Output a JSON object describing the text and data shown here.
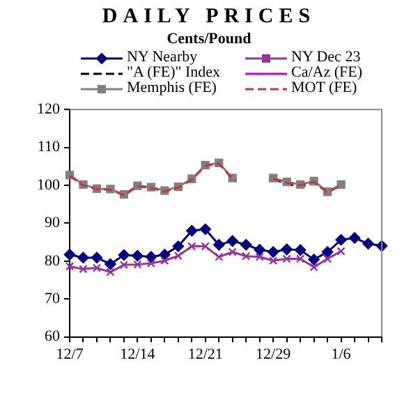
{
  "chart_data": {
    "type": "line",
    "title": "DAILY PRICES",
    "subtitle": "Cents/Pound",
    "categories": [
      "12/7",
      null,
      null,
      null,
      null,
      "12/14",
      null,
      null,
      null,
      null,
      "12/21",
      null,
      null,
      null,
      null,
      "12/29",
      null,
      null,
      null,
      null,
      "1/6",
      null,
      null,
      null
    ],
    "series": [
      {
        "name": "NY Nearby",
        "color": "#000080",
        "marker": "diamond",
        "line_style": "solid",
        "values": [
          81.7,
          80.9,
          80.9,
          79.2,
          81.6,
          81.4,
          81.1,
          81.7,
          83.9,
          88.0,
          88.4,
          84.3,
          85.3,
          84.3,
          83.0,
          82.4,
          83.1,
          82.9,
          80.4,
          82.4,
          85.6,
          86.1,
          84.6,
          84.0
        ]
      },
      {
        "name": "\"A (FE)\" Index",
        "color": "#000000",
        "marker": "none",
        "line_style": "dashed",
        "values": [
          null,
          null,
          null,
          null,
          null,
          null,
          null,
          null,
          null,
          null,
          null,
          null,
          null,
          null,
          null,
          101.6,
          100.4,
          99.6,
          100.6,
          98.4,
          100.0,
          null,
          null,
          null
        ]
      },
      {
        "name": "Memphis (FE)",
        "color": "#808080",
        "marker": "square",
        "line_style": "solid",
        "values": [
          102.7,
          100.2,
          99.1,
          99.0,
          97.6,
          99.9,
          99.5,
          98.6,
          99.6,
          101.7,
          105.3,
          105.9,
          101.9,
          null,
          null,
          101.9,
          100.9,
          100.2,
          101.1,
          98.3,
          100.2,
          null,
          null,
          null
        ]
      },
      {
        "name": "NY Dec 23",
        "color": "#993399",
        "marker": "cross",
        "line_style": "solid",
        "values": [
          78.6,
          77.9,
          78.2,
          77.1,
          79.0,
          79.1,
          79.4,
          80.1,
          81.4,
          83.9,
          83.9,
          81.1,
          82.4,
          81.3,
          81.1,
          80.1,
          80.6,
          80.6,
          78.4,
          80.6,
          82.6,
          null,
          null,
          null
        ]
      },
      {
        "name": "Ca/Az (FE)",
        "color": "#cc00cc",
        "marker": "none",
        "line_style": "solid",
        "values": [
          null,
          null,
          null,
          null,
          null,
          null,
          null,
          null,
          null,
          null,
          null,
          null,
          null,
          null,
          null,
          null,
          null,
          null,
          null,
          null,
          null,
          null,
          null,
          null
        ]
      },
      {
        "name": "MOT (FE)",
        "color": "#cc3333",
        "marker": "none",
        "line_style": "dashed",
        "values": [
          102.5,
          100.0,
          99.0,
          98.8,
          97.4,
          99.7,
          99.3,
          98.4,
          99.4,
          101.5,
          105.1,
          105.7,
          101.7,
          null,
          null,
          101.7,
          100.7,
          100.0,
          100.9,
          98.1,
          100.0,
          null,
          null,
          null
        ]
      }
    ],
    "ylim": [
      60,
      120
    ],
    "yticks": [
      60,
      70,
      80,
      90,
      100,
      110,
      120
    ],
    "grid": false,
    "legend": "top"
  }
}
